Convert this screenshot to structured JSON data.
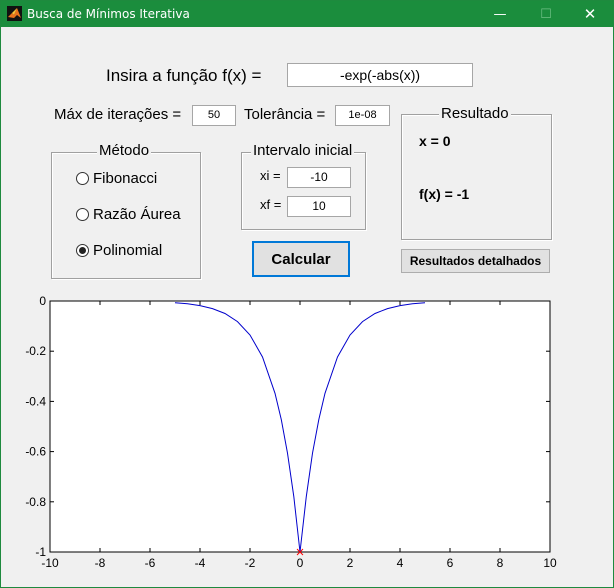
{
  "window": {
    "title": "Busca de Mínimos Iterativa",
    "minimize_glyph": "—",
    "maximize_glyph": "☐",
    "close_glyph": "✕",
    "icon": "matlab-icon"
  },
  "function": {
    "label": "Insira a função f(x) =",
    "value": "-exp(-abs(x))"
  },
  "iterations": {
    "label": "Máx de iterações =",
    "value": "50"
  },
  "tolerance": {
    "label": "Tolerância =",
    "value": "1e-08"
  },
  "method": {
    "title": "Método",
    "options": [
      {
        "label": "Fibonacci",
        "selected": false
      },
      {
        "label": "Razão Áurea",
        "selected": false
      },
      {
        "label": "Polinomial",
        "selected": true
      }
    ]
  },
  "interval": {
    "title": "Intervalo inicial",
    "xi_label": "xi =",
    "xi_value": "-10",
    "xf_label": "xf =",
    "xf_value": "10"
  },
  "calculate_button": "Calcular",
  "result": {
    "title": "Resultado",
    "x_text": "x = 0",
    "fx_text": "f(x) = -1"
  },
  "details_button": "Resultados detalhados",
  "chart_data": {
    "type": "line",
    "function": "-exp(-abs(x))",
    "xlim": [
      -10,
      10
    ],
    "ylim": [
      -1,
      0
    ],
    "x_ticks": [
      -10,
      -8,
      -6,
      -4,
      -2,
      0,
      2,
      4,
      6,
      8,
      10
    ],
    "y_ticks": [
      0,
      -0.2,
      -0.4,
      -0.6,
      -0.8,
      -1
    ],
    "x_tick_labels": [
      "-10",
      "-8",
      "-6",
      "-4",
      "-2",
      "0",
      "2",
      "4",
      "6",
      "8",
      "10"
    ],
    "y_tick_labels": [
      "0",
      "-0.2",
      "-0.4",
      "-0.6",
      "-0.8",
      "-1"
    ],
    "series": [
      {
        "color": "#0000cc",
        "x": [
          -5,
          -4.5,
          -4,
          -3.5,
          -3,
          -2.5,
          -2,
          -1.5,
          -1,
          -0.75,
          -0.5,
          -0.25,
          0,
          0.25,
          0.5,
          0.75,
          1,
          1.5,
          2,
          2.5,
          3,
          3.5,
          4,
          4.5,
          5
        ],
        "y": [
          -0.0067,
          -0.0111,
          -0.0183,
          -0.0302,
          -0.0498,
          -0.0821,
          -0.1353,
          -0.2231,
          -0.3679,
          -0.4724,
          -0.6065,
          -0.7788,
          -1,
          -0.7788,
          -0.6065,
          -0.4724,
          -0.3679,
          -0.2231,
          -0.1353,
          -0.0821,
          -0.0498,
          -0.0302,
          -0.0183,
          -0.0111,
          -0.0067
        ]
      }
    ],
    "minimum_marker": {
      "x": 0,
      "y": -1,
      "color": "#ff0000",
      "symbol": "x"
    },
    "grid": false
  }
}
